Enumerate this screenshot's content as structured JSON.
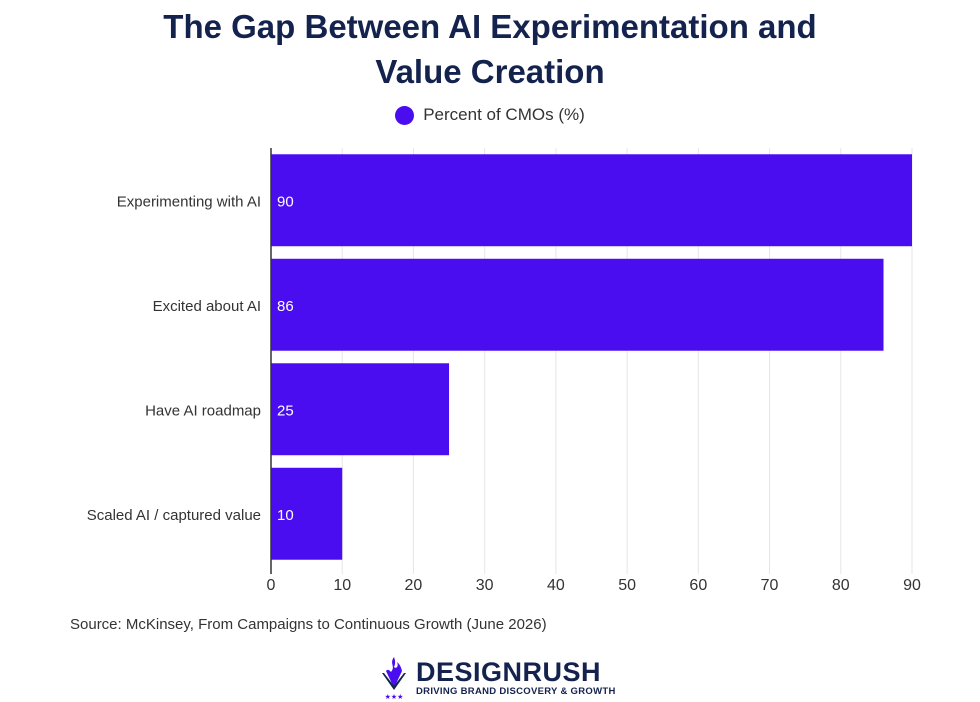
{
  "colors": {
    "bar": "#4a0df0",
    "title": "#14224e",
    "grid": "#e6e6e6",
    "axis": "#333333",
    "text": "#333333",
    "bar_label": "#ffffff"
  },
  "source": "Source: McKinsey, From Campaigns to Continuous Growth (June 2026)",
  "logo": {
    "icon": "designrush-flame-icon",
    "name": "DESIGNRUSH",
    "tagline": "DRIVING BRAND DISCOVERY & GROWTH"
  },
  "chart_data": {
    "type": "bar",
    "orientation": "horizontal",
    "title_lines": [
      "The Gap Between AI Experimentation and",
      "Value Creation"
    ],
    "categories": [
      "Experimenting with AI",
      "Excited about AI",
      "Have AI roadmap",
      "Scaled AI / captured value"
    ],
    "series": [
      {
        "name": "Percent of CMOs (%)",
        "values": [
          90,
          86,
          25,
          10
        ]
      }
    ],
    "xlim": [
      0,
      90
    ],
    "xticks": [
      0,
      10,
      20,
      30,
      40,
      50,
      60,
      70,
      80,
      90
    ],
    "xlabel": "",
    "ylabel": "",
    "grid": "vertical",
    "legend": "top-center",
    "data_labels": true
  }
}
